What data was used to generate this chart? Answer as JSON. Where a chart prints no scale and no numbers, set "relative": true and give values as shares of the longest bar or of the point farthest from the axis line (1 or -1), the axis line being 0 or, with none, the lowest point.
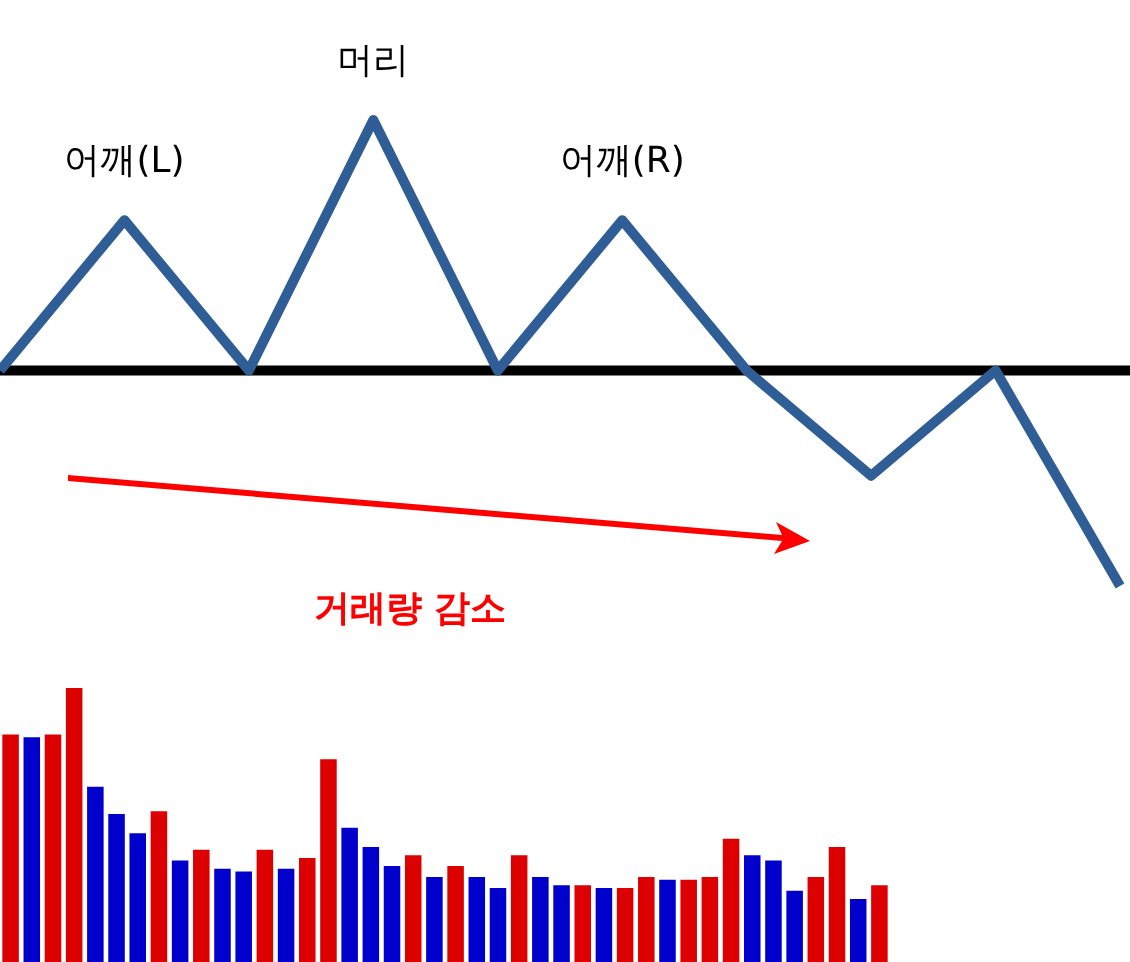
{
  "chart_data": [
    {
      "type": "line",
      "relative": true,
      "marker": "none",
      "line_style": "solid",
      "categories": [
        null,
        null,
        null,
        null,
        null,
        null,
        null,
        null,
        null,
        null
      ],
      "series": [
        {
          "color": "#2f5d96",
          "values": [
            0,
            0.6,
            0,
            1,
            0,
            0.6,
            0,
            -0.42,
            0,
            -0.86
          ]
        }
      ],
      "annotations": [
        "어깨(L)",
        "머리",
        "어깨(R)",
        "거래량 감소"
      ]
    },
    {
      "type": "bar",
      "relative": true,
      "categories": [
        null,
        null,
        null,
        null,
        null,
        null,
        null,
        null,
        null,
        null,
        null,
        null,
        null,
        null,
        null,
        null,
        null,
        null,
        null,
        null,
        null,
        null,
        null,
        null,
        null,
        null,
        null,
        null,
        null,
        null,
        null,
        null,
        null,
        null,
        null,
        null,
        null,
        null,
        null,
        null,
        null,
        null
      ],
      "values": [
        0.83,
        0.82,
        0.83,
        1,
        0.64,
        0.54,
        0.47,
        0.55,
        0.37,
        0.41,
        0.34,
        0.33,
        0.41,
        0.34,
        0.38,
        0.74,
        0.49,
        0.42,
        0.35,
        0.39,
        0.31,
        0.35,
        0.31,
        0.27,
        0.39,
        0.31,
        0.28,
        0.28,
        0.27,
        0.27,
        0.31,
        0.3,
        0.3,
        0.31,
        0.45,
        0.39,
        0.37,
        0.26,
        0.31,
        0.42,
        0.23,
        0.28
      ],
      "colors": [
        "#dd0000",
        "#0000cc",
        "#dd0000",
        "#dd0000",
        "#0000cc",
        "#0000cc",
        "#0000cc",
        "#dd0000",
        "#0000cc",
        "#dd0000",
        "#0000cc",
        "#0000cc",
        "#dd0000",
        "#0000cc",
        "#dd0000",
        "#dd0000",
        "#0000cc",
        "#0000cc",
        "#0000cc",
        "#dd0000",
        "#0000cc",
        "#dd0000",
        "#0000cc",
        "#0000cc",
        "#dd0000",
        "#0000cc",
        "#0000cc",
        "#dd0000",
        "#0000cc",
        "#dd0000",
        "#dd0000",
        "#0000cc",
        "#dd0000",
        "#dd0000",
        "#dd0000",
        "#0000cc",
        "#0000cc",
        "#0000cc",
        "#dd0000",
        "#dd0000",
        "#0000cc",
        "#dd0000"
      ]
    }
  ]
}
